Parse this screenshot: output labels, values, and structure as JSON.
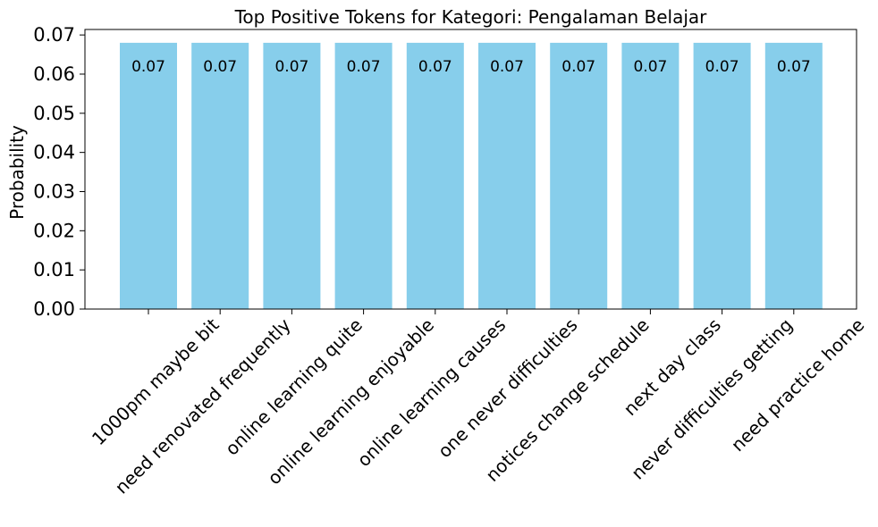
{
  "chart_data": {
    "type": "bar",
    "title": "Top Positive Tokens for Kategori: Pengalaman Belajar",
    "xlabel": "",
    "ylabel": "Probability",
    "categories": [
      "1000pm maybe bit",
      "need renovated frequently",
      "online learning quite",
      "online learning enjoyable",
      "online learning causes",
      "one never difficulties",
      "notices change schedule",
      "next day class",
      "never difficulties getting",
      "need practice home"
    ],
    "values": [
      0.068,
      0.068,
      0.068,
      0.068,
      0.068,
      0.068,
      0.068,
      0.068,
      0.068,
      0.068
    ],
    "data_labels": [
      "0.07",
      "0.07",
      "0.07",
      "0.07",
      "0.07",
      "0.07",
      "0.07",
      "0.07",
      "0.07",
      "0.07"
    ],
    "yticks": [
      0.0,
      0.01,
      0.02,
      0.03,
      0.04,
      0.05,
      0.06,
      0.07
    ],
    "ytick_labels": [
      "0.00",
      "0.01",
      "0.02",
      "0.03",
      "0.04",
      "0.05",
      "0.06",
      "0.07"
    ],
    "ylim": [
      0,
      0.0714
    ],
    "grid": false,
    "bar_color": "#87CEEB"
  }
}
